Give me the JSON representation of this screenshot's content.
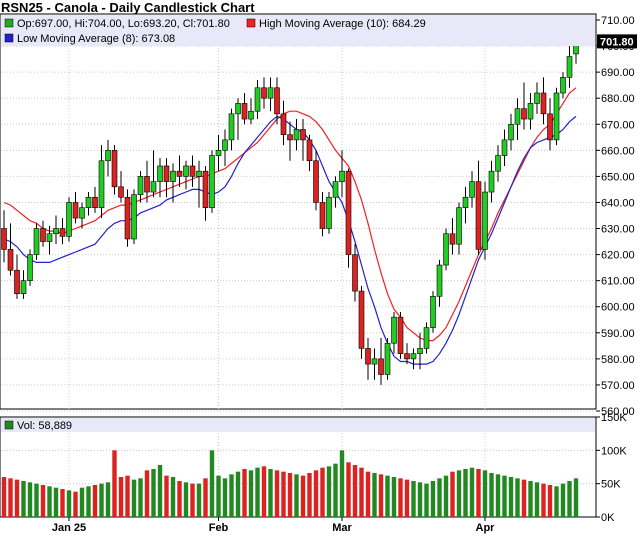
{
  "chart_data": {
    "type": "candlestick",
    "title": "RSN25 - Canola - Daily Candlestick Chart",
    "ohlc_legend": "Op:697.00, Hi:704.00, Lo:693.20, Cl:701.80",
    "ma_high_label": "High Moving Average (10): 684.29",
    "ma_low_label": "Low Moving Average (8): 673.08",
    "last_price": "701.80",
    "volume_label": "Vol: 58,889",
    "colors": {
      "up": "#22cc22",
      "down": "#dd2222",
      "ma_high": "#ee2222",
      "ma_low": "#2222cc",
      "vol_up": "#228822",
      "vol_down": "#dd2222",
      "legend_bg": "#e8e8f8"
    },
    "price_ylim": [
      560,
      710
    ],
    "price_ticks": [
      "710.00",
      "700.00",
      "690.00",
      "680.00",
      "670.00",
      "660.00",
      "650.00",
      "640.00",
      "630.00",
      "620.00",
      "610.00",
      "600.00",
      "590.00",
      "580.00",
      "570.00",
      "560.00"
    ],
    "volume_ylim": [
      0,
      150000
    ],
    "volume_ticks": [
      "150K",
      "100K",
      "50K",
      "0K"
    ],
    "x_labels": [
      {
        "label": "Jan 25",
        "index": 10
      },
      {
        "label": "Feb",
        "index": 33
      },
      {
        "label": "Mar",
        "index": 52
      },
      {
        "label": "Apr",
        "index": 74
      }
    ],
    "candles": [
      [
        630,
        637,
        617,
        622
      ],
      [
        622,
        632,
        612,
        614
      ],
      [
        614,
        620,
        603,
        605
      ],
      [
        605,
        614,
        603,
        610
      ],
      [
        610,
        622,
        608,
        620
      ],
      [
        620,
        632,
        618,
        630
      ],
      [
        630,
        633,
        623,
        625
      ],
      [
        625,
        631,
        620,
        628
      ],
      [
        628,
        635,
        624,
        630
      ],
      [
        630,
        634,
        624,
        627
      ],
      [
        627,
        642,
        625,
        640
      ],
      [
        640,
        644,
        632,
        634
      ],
      [
        634,
        640,
        630,
        638
      ],
      [
        638,
        644,
        635,
        642
      ],
      [
        642,
        646,
        636,
        638
      ],
      [
        638,
        662,
        634,
        656
      ],
      [
        656,
        664,
        650,
        660
      ],
      [
        660,
        662,
        643,
        646
      ],
      [
        646,
        652,
        640,
        642
      ],
      [
        642,
        645,
        623,
        626
      ],
      [
        626,
        645,
        624,
        643
      ],
      [
        643,
        652,
        640,
        650
      ],
      [
        650,
        656,
        640,
        644
      ],
      [
        644,
        660,
        642,
        648
      ],
      [
        648,
        657,
        642,
        654
      ],
      [
        654,
        657,
        642,
        648
      ],
      [
        648,
        655,
        640,
        652
      ],
      [
        652,
        658,
        646,
        650
      ],
      [
        650,
        656,
        645,
        654
      ],
      [
        654,
        658,
        646,
        650
      ],
      [
        650,
        656,
        638,
        652
      ],
      [
        652,
        654,
        633,
        638
      ],
      [
        638,
        660,
        636,
        658
      ],
      [
        658,
        666,
        652,
        660
      ],
      [
        660,
        668,
        654,
        664
      ],
      [
        664,
        676,
        660,
        674
      ],
      [
        674,
        680,
        664,
        678
      ],
      [
        678,
        682,
        670,
        672
      ],
      [
        672,
        680,
        670,
        675
      ],
      [
        675,
        687,
        672,
        684
      ],
      [
        684,
        688,
        676,
        680
      ],
      [
        680,
        688,
        675,
        684
      ],
      [
        684,
        688,
        670,
        674
      ],
      [
        674,
        679,
        662,
        666
      ],
      [
        666,
        671,
        656,
        664
      ],
      [
        664,
        672,
        660,
        668
      ],
      [
        668,
        672,
        656,
        664
      ],
      [
        664,
        666,
        652,
        656
      ],
      [
        656,
        660,
        637,
        640
      ],
      [
        640,
        644,
        627,
        630
      ],
      [
        630,
        644,
        628,
        642
      ],
      [
        642,
        650,
        638,
        648
      ],
      [
        648,
        660,
        642,
        652
      ],
      [
        652,
        653,
        615,
        620
      ],
      [
        620,
        624,
        602,
        606
      ],
      [
        606,
        608,
        580,
        584
      ],
      [
        584,
        588,
        572,
        578
      ],
      [
        578,
        584,
        572,
        580
      ],
      [
        580,
        588,
        570,
        574
      ],
      [
        574,
        588,
        572,
        586
      ],
      [
        586,
        598,
        582,
        596
      ],
      [
        596,
        598,
        580,
        582
      ],
      [
        582,
        586,
        578,
        580
      ],
      [
        580,
        584,
        576,
        582
      ],
      [
        582,
        590,
        576,
        584
      ],
      [
        584,
        594,
        582,
        592
      ],
      [
        592,
        606,
        590,
        604
      ],
      [
        604,
        618,
        600,
        616
      ],
      [
        616,
        630,
        614,
        628
      ],
      [
        628,
        634,
        620,
        624
      ],
      [
        624,
        640,
        620,
        638
      ],
      [
        638,
        646,
        632,
        642
      ],
      [
        642,
        652,
        638,
        648
      ],
      [
        648,
        656,
        620,
        622
      ],
      [
        622,
        648,
        618,
        644
      ],
      [
        644,
        656,
        640,
        652
      ],
      [
        652,
        662,
        648,
        658
      ],
      [
        658,
        668,
        654,
        664
      ],
      [
        664,
        674,
        660,
        670
      ],
      [
        670,
        680,
        664,
        676
      ],
      [
        676,
        686,
        668,
        672
      ],
      [
        672,
        682,
        668,
        678
      ],
      [
        678,
        686,
        674,
        682
      ],
      [
        682,
        688,
        670,
        674
      ],
      [
        674,
        680,
        660,
        664
      ],
      [
        664,
        684,
        662,
        682
      ],
      [
        682,
        690,
        680,
        688
      ],
      [
        688,
        700,
        684,
        696
      ],
      [
        697,
        704,
        693.2,
        701.8
      ]
    ],
    "ma_high": [
      640,
      639,
      637,
      635,
      633,
      632,
      630,
      629,
      629,
      628,
      629,
      630,
      631,
      632,
      633,
      635,
      637,
      638,
      639,
      639,
      640,
      641,
      642,
      643,
      644,
      645,
      646,
      647,
      648,
      649,
      650,
      650,
      651,
      652,
      653,
      655,
      657,
      659,
      661,
      663,
      666,
      669,
      672,
      674,
      675,
      675,
      674,
      673,
      671,
      668,
      664,
      660,
      657,
      654,
      648,
      641,
      632,
      622,
      613,
      605,
      599,
      596,
      592,
      590,
      588,
      587,
      587,
      589,
      592,
      597,
      602,
      608,
      614,
      620,
      625,
      630,
      636,
      641,
      646,
      651,
      656,
      661,
      665,
      668,
      670,
      674,
      678,
      682,
      684
    ],
    "ma_low": [
      626,
      625,
      623,
      620,
      618,
      617,
      617,
      617,
      618,
      619,
      620,
      621,
      622,
      623,
      624,
      627,
      630,
      632,
      633,
      633,
      634,
      636,
      637,
      638,
      639,
      641,
      642,
      643,
      644,
      645,
      645,
      644,
      643,
      644,
      646,
      650,
      655,
      659,
      662,
      665,
      668,
      671,
      673,
      672,
      670,
      668,
      667,
      664,
      660,
      654,
      648,
      644,
      640,
      633,
      625,
      616,
      607,
      600,
      592,
      586,
      581,
      579,
      579,
      578,
      578,
      578,
      579,
      582,
      586,
      591,
      597,
      604,
      611,
      618,
      623,
      628,
      634,
      640,
      646,
      652,
      657,
      661,
      663,
      664,
      665,
      666,
      668,
      671,
      673
    ],
    "volume": [
      60,
      58,
      56,
      54,
      52,
      50,
      48,
      46,
      44,
      42,
      40,
      38,
      44,
      46,
      48,
      50,
      52,
      100,
      60,
      62,
      56,
      58,
      70,
      72,
      78,
      62,
      60,
      54,
      52,
      50,
      50,
      58,
      100,
      62,
      58,
      64,
      68,
      72,
      70,
      74,
      76,
      72,
      70,
      68,
      66,
      64,
      62,
      66,
      70,
      74,
      76,
      80,
      100,
      82,
      78,
      74,
      68,
      66,
      64,
      62,
      60,
      58,
      56,
      54,
      52,
      50,
      54,
      58,
      62,
      68,
      70,
      72,
      74,
      72,
      70,
      66,
      64,
      62,
      60,
      58,
      56,
      54,
      52,
      50,
      48,
      46,
      50,
      54,
      58
    ],
    "volume_up": [
      false,
      false,
      false,
      true,
      true,
      true,
      false,
      true,
      true,
      false,
      true,
      false,
      true,
      true,
      false,
      true,
      true,
      false,
      false,
      false,
      true,
      true,
      false,
      true,
      true,
      false,
      true,
      false,
      true,
      false,
      true,
      false,
      true,
      true,
      true,
      true,
      true,
      false,
      true,
      true,
      false,
      true,
      false,
      false,
      false,
      true,
      false,
      false,
      false,
      false,
      true,
      true,
      true,
      false,
      false,
      false,
      false,
      true,
      false,
      true,
      true,
      false,
      false,
      true,
      true,
      true,
      true,
      true,
      true,
      false,
      true,
      true,
      true,
      false,
      true,
      true,
      true,
      true,
      true,
      true,
      false,
      true,
      true,
      false,
      false,
      true,
      true,
      true,
      true
    ]
  }
}
